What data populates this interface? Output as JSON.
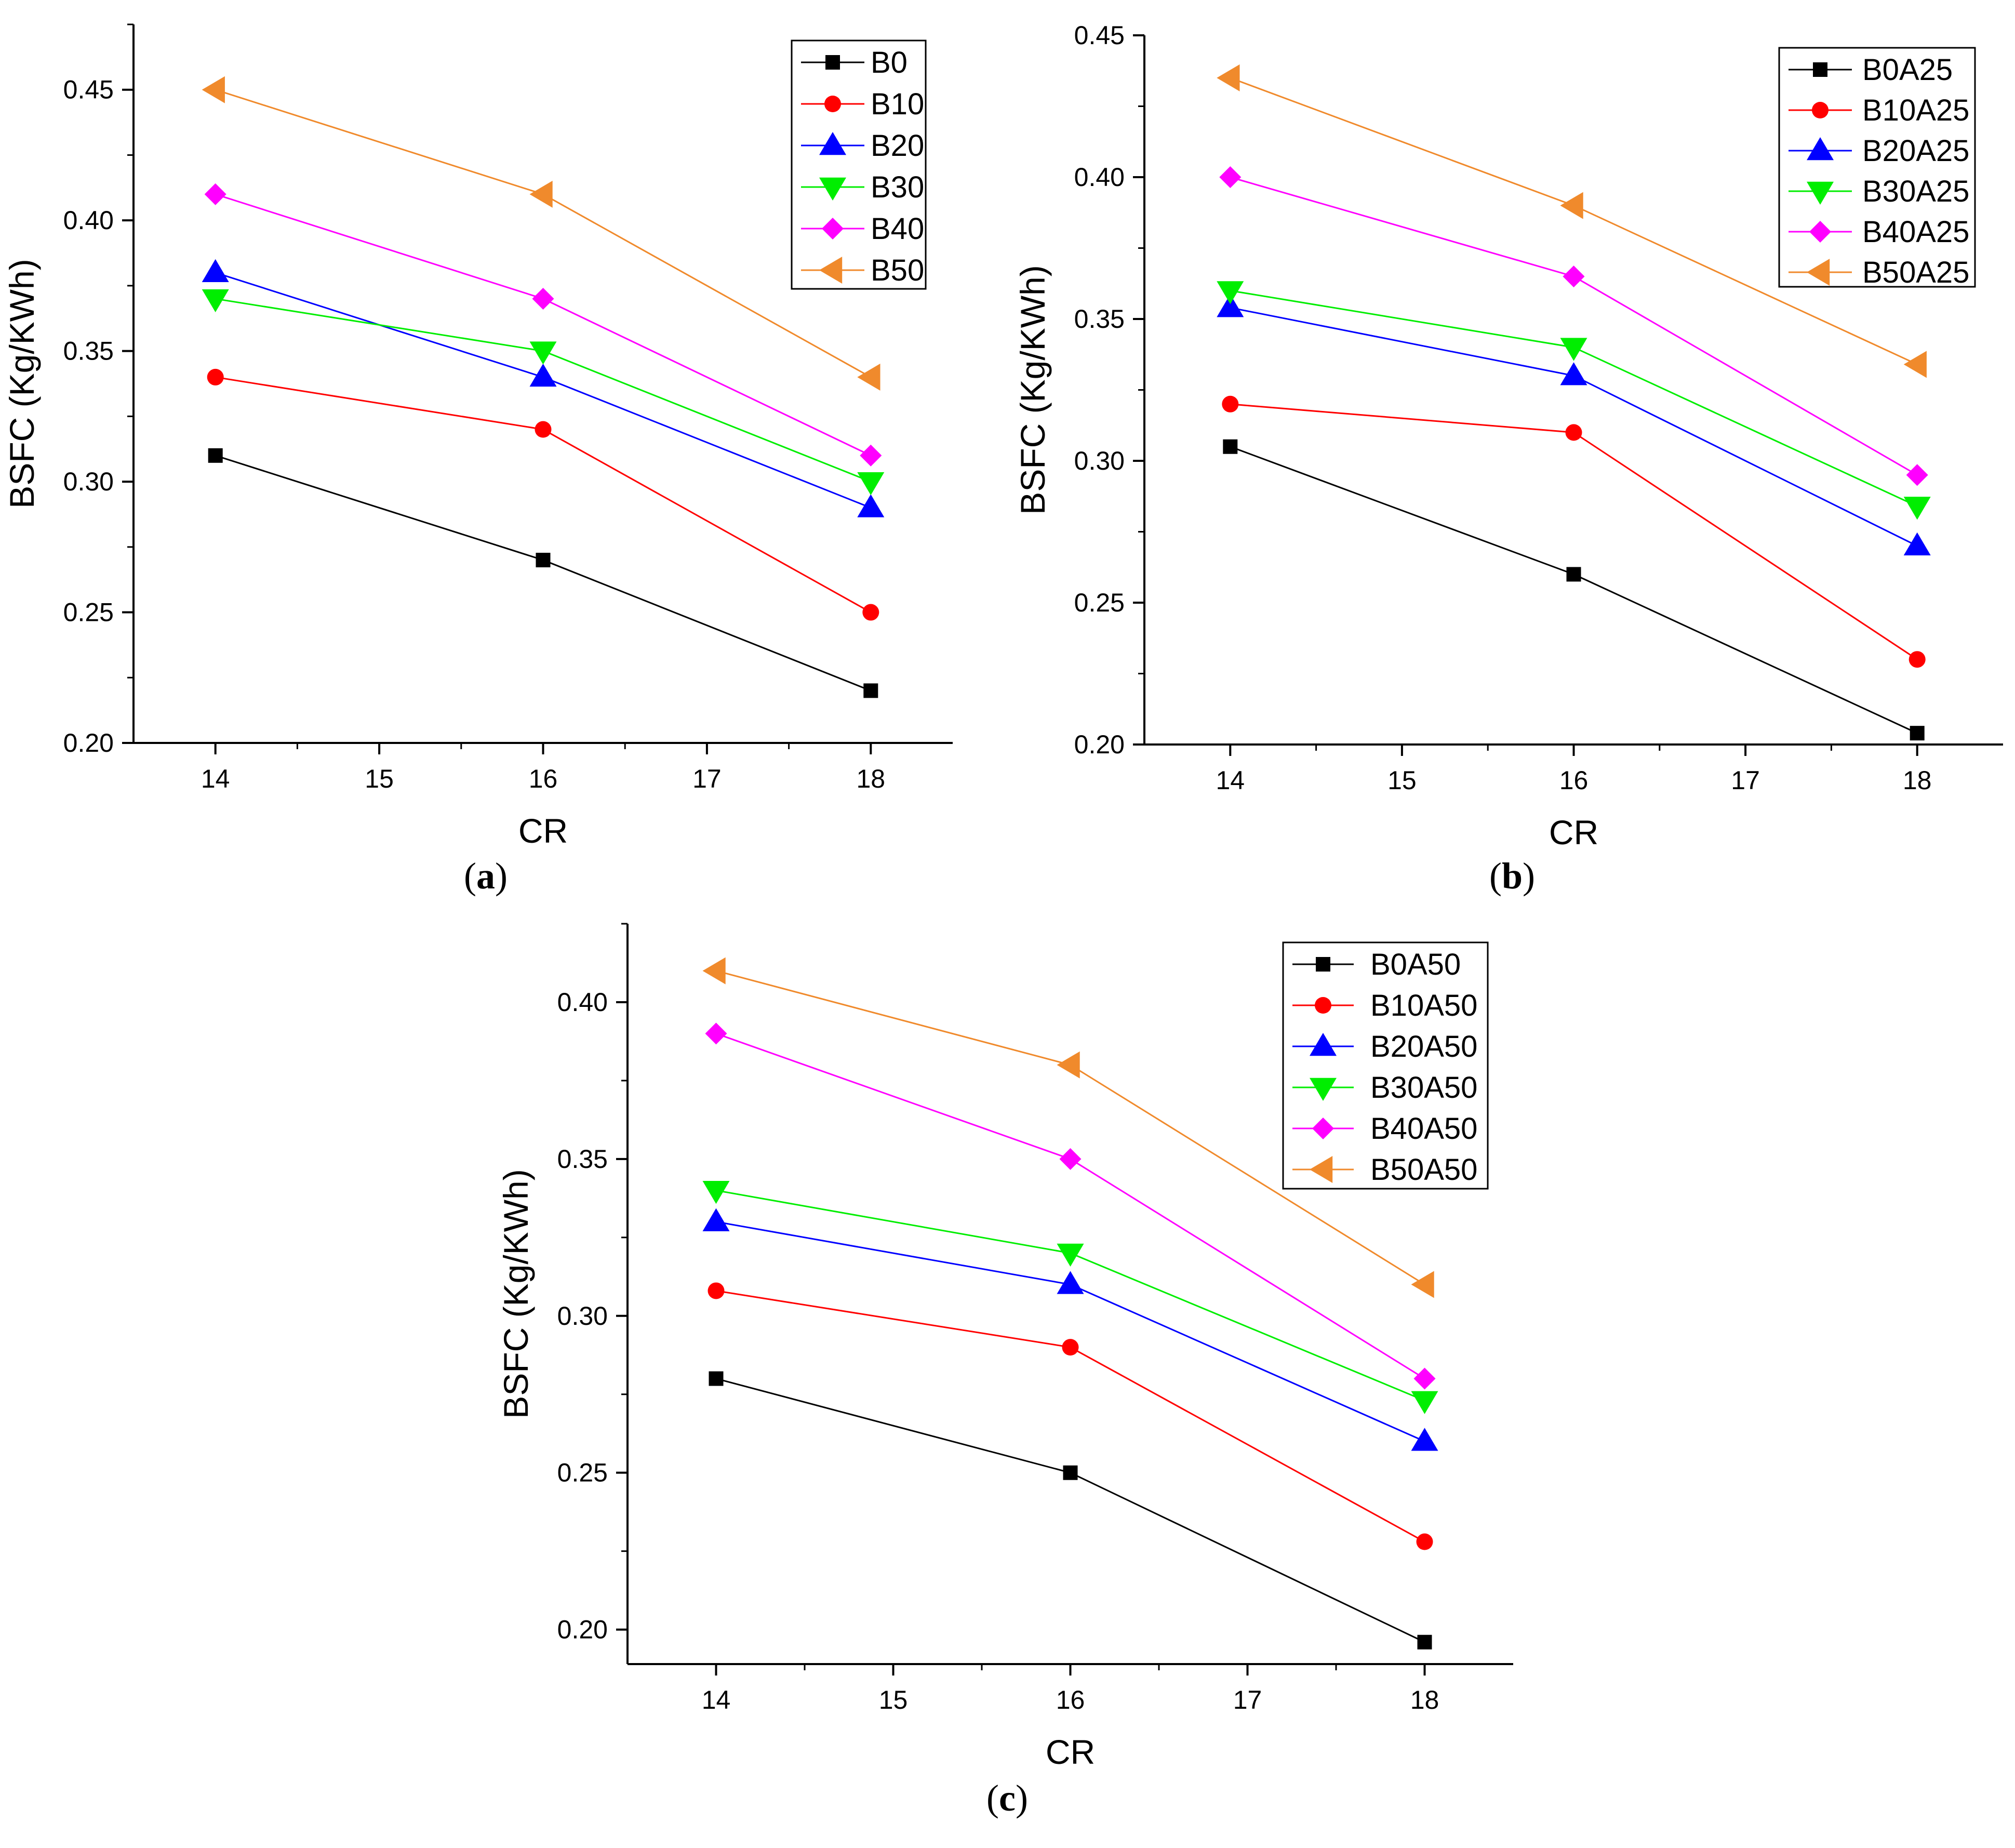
{
  "figure": {
    "layout": "three line charts: (a) and (b) on top, (c) centered below"
  },
  "chart_data": [
    {
      "type": "line",
      "caption": "a",
      "title": "",
      "xlabel": "CR",
      "ylabel": "BSFC (Kg/KWh)",
      "x": [
        14,
        16,
        18
      ],
      "xlim": [
        13.5,
        18.5
      ],
      "ylim": [
        0.2,
        0.475
      ],
      "xticks": [
        14,
        15,
        16,
        17,
        18
      ],
      "yticks": [
        0.2,
        0.25,
        0.3,
        0.35,
        0.4,
        0.45
      ],
      "ytick_labels": [
        "0.20",
        "0.25",
        "0.30",
        "0.35",
        "0.40",
        "0.45"
      ],
      "legend_position": "top-right",
      "series": [
        {
          "name": "B0",
          "values": [
            0.31,
            0.27,
            0.22
          ],
          "color": "#000000",
          "marker": "square"
        },
        {
          "name": "B10",
          "values": [
            0.34,
            0.32,
            0.25
          ],
          "color": "#ff0000",
          "marker": "circle"
        },
        {
          "name": "B20",
          "values": [
            0.38,
            0.34,
            0.29
          ],
          "color": "#0000ff",
          "marker": "triangle-up"
        },
        {
          "name": "B30",
          "values": [
            0.37,
            0.35,
            0.3
          ],
          "color": "#00ee00",
          "marker": "triangle-down"
        },
        {
          "name": "B40",
          "values": [
            0.41,
            0.37,
            0.31
          ],
          "color": "#ff00ff",
          "marker": "diamond"
        },
        {
          "name": "B50",
          "values": [
            0.45,
            0.41,
            0.34
          ],
          "color": "#f08a2c",
          "marker": "triangle-left"
        }
      ]
    },
    {
      "type": "line",
      "caption": "b",
      "title": "",
      "xlabel": "CR",
      "ylabel": "BSFC (Kg/KWh)",
      "x": [
        14,
        16,
        18
      ],
      "xlim": [
        13.5,
        18.5
      ],
      "ylim": [
        0.2,
        0.45
      ],
      "xticks": [
        14,
        15,
        16,
        17,
        18
      ],
      "yticks": [
        0.2,
        0.25,
        0.3,
        0.35,
        0.4,
        0.45
      ],
      "ytick_labels": [
        "0.20",
        "0.25",
        "0.30",
        "0.35",
        "0.40",
        "0.45"
      ],
      "legend_position": "top-right",
      "series": [
        {
          "name": "B0A25",
          "values": [
            0.305,
            0.26,
            0.204
          ],
          "color": "#000000",
          "marker": "square"
        },
        {
          "name": "B10A25",
          "values": [
            0.32,
            0.31,
            0.23
          ],
          "color": "#ff0000",
          "marker": "circle"
        },
        {
          "name": "B20A25",
          "values": [
            0.354,
            0.33,
            0.27
          ],
          "color": "#0000ff",
          "marker": "triangle-up"
        },
        {
          "name": "B30A25",
          "values": [
            0.36,
            0.34,
            0.284
          ],
          "color": "#00ee00",
          "marker": "triangle-down"
        },
        {
          "name": "B40A25",
          "values": [
            0.4,
            0.365,
            0.295
          ],
          "color": "#ff00ff",
          "marker": "diamond"
        },
        {
          "name": "B50A25",
          "values": [
            0.435,
            0.39,
            0.334
          ],
          "color": "#f08a2c",
          "marker": "triangle-left"
        }
      ]
    },
    {
      "type": "line",
      "caption": "c",
      "title": "",
      "xlabel": "CR",
      "ylabel": "BSFC (Kg/KWh)",
      "x": [
        14,
        16,
        18
      ],
      "xlim": [
        13.5,
        18.5
      ],
      "ylim": [
        0.189,
        0.425
      ],
      "xticks": [
        14,
        15,
        16,
        17,
        18
      ],
      "yticks": [
        0.2,
        0.25,
        0.3,
        0.35,
        0.4
      ],
      "ytick_labels": [
        "0.20",
        "0.25",
        "0.30",
        "0.35",
        "0.40"
      ],
      "legend_position": "top-right",
      "series": [
        {
          "name": "B0A50",
          "values": [
            0.28,
            0.25,
            0.196
          ],
          "color": "#000000",
          "marker": "square"
        },
        {
          "name": "B10A50",
          "values": [
            0.308,
            0.29,
            0.228
          ],
          "color": "#ff0000",
          "marker": "circle"
        },
        {
          "name": "B20A50",
          "values": [
            0.33,
            0.31,
            0.26
          ],
          "color": "#0000ff",
          "marker": "triangle-up"
        },
        {
          "name": "B30A50",
          "values": [
            0.34,
            0.32,
            0.273
          ],
          "color": "#00ee00",
          "marker": "triangle-down"
        },
        {
          "name": "B40A50",
          "values": [
            0.39,
            0.35,
            0.28
          ],
          "color": "#ff00ff",
          "marker": "diamond"
        },
        {
          "name": "B50A50",
          "values": [
            0.41,
            0.38,
            0.31
          ],
          "color": "#f08a2c",
          "marker": "triangle-left"
        }
      ]
    }
  ]
}
